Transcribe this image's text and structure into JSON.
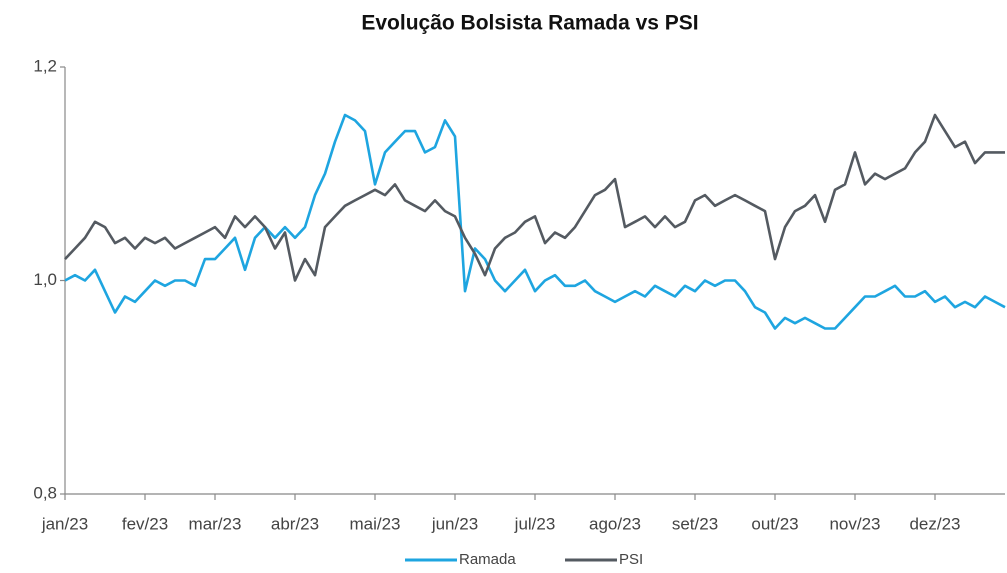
{
  "chart_data": {
    "type": "line",
    "title": "Evolução Bolsista Ramada vs PSI",
    "categories": [
      "jan/23",
      null,
      null,
      null,
      null,
      null,
      null,
      null,
      "fev/23",
      null,
      null,
      null,
      null,
      null,
      null,
      "mar/23",
      null,
      null,
      null,
      null,
      null,
      null,
      null,
      "abr/23",
      null,
      null,
      null,
      null,
      null,
      null,
      null,
      "mai/23",
      null,
      null,
      null,
      null,
      null,
      null,
      null,
      "jun/23",
      null,
      null,
      null,
      null,
      null,
      null,
      null,
      "jul/23",
      null,
      null,
      null,
      null,
      null,
      null,
      null,
      "ago/23",
      null,
      null,
      null,
      null,
      null,
      null,
      null,
      "set/23",
      null,
      null,
      null,
      null,
      null,
      null,
      null,
      "out/23",
      null,
      null,
      null,
      null,
      null,
      null,
      null,
      "nov/23",
      null,
      null,
      null,
      null,
      null,
      null,
      null,
      "dez/23",
      null,
      null,
      null,
      null,
      null,
      null,
      null
    ],
    "series": [
      {
        "name": "Ramada",
        "color": "#1ea5e0",
        "values": [
          1.0,
          1.005,
          1.0,
          1.01,
          0.99,
          0.97,
          0.985,
          0.98,
          0.99,
          1.0,
          0.995,
          1.0,
          1.0,
          0.995,
          1.02,
          1.02,
          1.03,
          1.04,
          1.01,
          1.04,
          1.05,
          1.04,
          1.05,
          1.04,
          1.05,
          1.08,
          1.1,
          1.13,
          1.155,
          1.15,
          1.14,
          1.09,
          1.12,
          1.13,
          1.14,
          1.14,
          1.12,
          1.125,
          1.15,
          1.135,
          0.99,
          1.03,
          1.02,
          1.0,
          0.99,
          1.0,
          1.01,
          0.99,
          1.0,
          1.005,
          0.995,
          0.995,
          1.0,
          0.99,
          0.985,
          0.98,
          0.985,
          0.99,
          0.985,
          0.995,
          0.99,
          0.985,
          0.995,
          0.99,
          1.0,
          0.995,
          1.0,
          1.0,
          0.99,
          0.975,
          0.97,
          0.955,
          0.965,
          0.96,
          0.965,
          0.96,
          0.955,
          0.955,
          0.965,
          0.975,
          0.985,
          0.985,
          0.99,
          0.995,
          0.985,
          0.985,
          0.99,
          0.98,
          0.985,
          0.975,
          0.98,
          0.975,
          0.985,
          0.98,
          0.975
        ]
      },
      {
        "name": "PSI",
        "color": "#545a61",
        "values": [
          1.02,
          1.03,
          1.04,
          1.055,
          1.05,
          1.035,
          1.04,
          1.03,
          1.04,
          1.035,
          1.04,
          1.03,
          1.035,
          1.04,
          1.045,
          1.05,
          1.04,
          1.06,
          1.05,
          1.06,
          1.05,
          1.03,
          1.045,
          1.0,
          1.02,
          1.005,
          1.05,
          1.06,
          1.07,
          1.075,
          1.08,
          1.085,
          1.08,
          1.09,
          1.075,
          1.07,
          1.065,
          1.075,
          1.065,
          1.06,
          1.04,
          1.025,
          1.005,
          1.03,
          1.04,
          1.045,
          1.055,
          1.06,
          1.035,
          1.045,
          1.04,
          1.05,
          1.065,
          1.08,
          1.085,
          1.095,
          1.05,
          1.055,
          1.06,
          1.05,
          1.06,
          1.05,
          1.055,
          1.075,
          1.08,
          1.07,
          1.075,
          1.08,
          1.075,
          1.07,
          1.065,
          1.02,
          1.05,
          1.065,
          1.07,
          1.08,
          1.055,
          1.085,
          1.09,
          1.12,
          1.09,
          1.1,
          1.095,
          1.1,
          1.105,
          1.12,
          1.13,
          1.155,
          1.14,
          1.125,
          1.13,
          1.11,
          1.12,
          1.12,
          1.12
        ]
      }
    ],
    "ylim": [
      0.8,
      1.2
    ],
    "yticks": [
      {
        "value": 0.8,
        "label": "0,8"
      },
      {
        "value": 1.0,
        "label": "1,0"
      },
      {
        "value": 1.2,
        "label": "1,2"
      }
    ],
    "grid": false,
    "legend": "bottom"
  }
}
